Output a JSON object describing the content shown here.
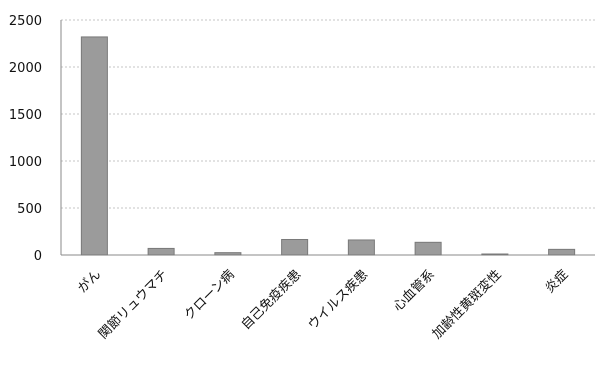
{
  "chart_data": {
    "type": "bar",
    "categories": [
      "がん",
      "関節リュウマチ",
      "クローン病",
      "自己免疫疾患",
      "ウイルス疾患",
      "心血管系",
      "加齢性黄斑変性",
      "炎症"
    ],
    "series": [
      {
        "values": [
          2320,
          70,
          25,
          165,
          160,
          135,
          5,
          60
        ]
      }
    ],
    "yticks": [
      "0",
      "500",
      "1000",
      "1500",
      "2000",
      "2500"
    ],
    "ylim": [
      0,
      2500
    ],
    "grid": true,
    "legend": "none",
    "bar_color": "#9b9b9b",
    "bar_edge_color": "#7a7a7a",
    "axis_color": "#8a8a8a",
    "grid_color": "#c6c6c6",
    "text_color": "#111111"
  }
}
